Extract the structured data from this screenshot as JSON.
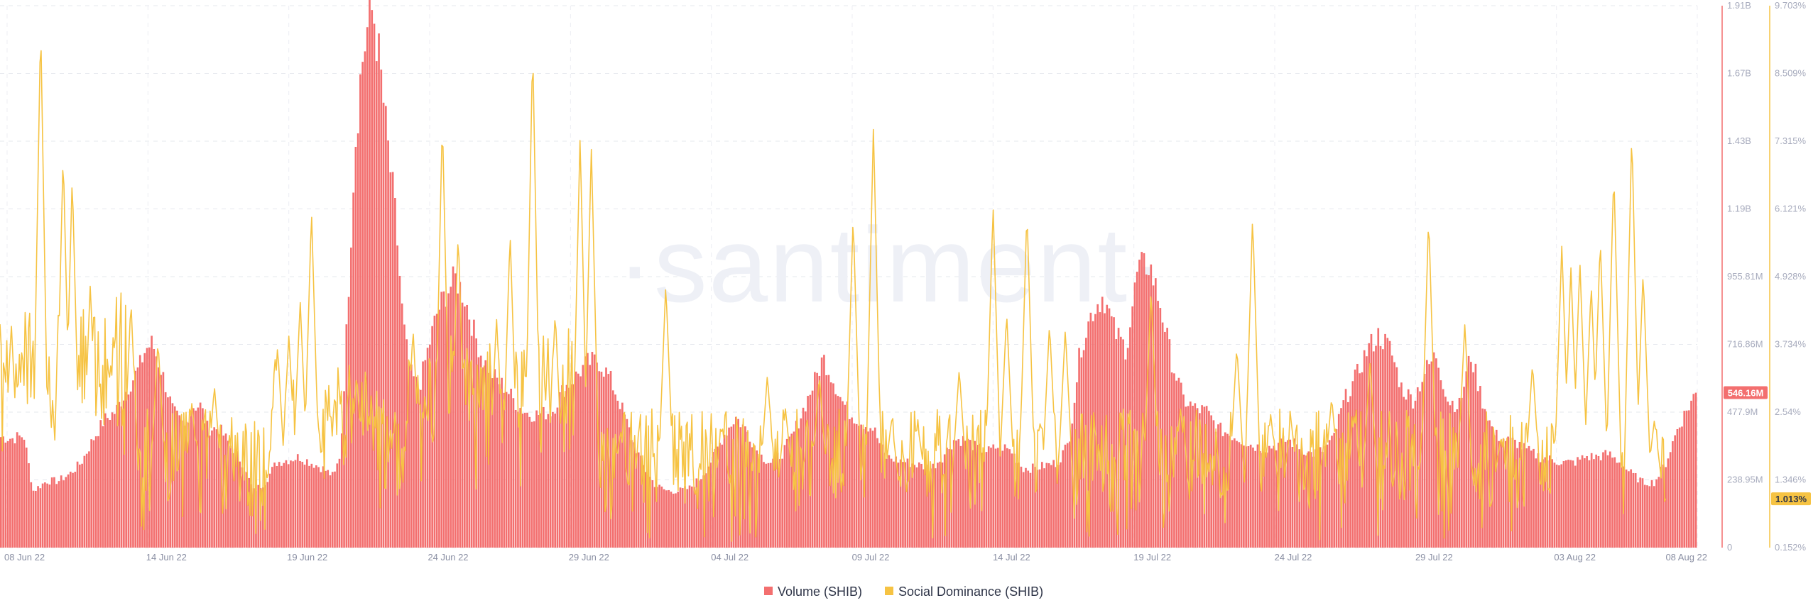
{
  "watermark": "·santiment·",
  "chart_data": {
    "type": "bar",
    "title": "",
    "xlabel": "",
    "ylabel": "",
    "x_axis": {
      "start": "2022-06-08",
      "end": "2022-08-08",
      "ticks": [
        "08 Jun 22",
        "14 Jun 22",
        "19 Jun 22",
        "24 Jun 22",
        "29 Jun 22",
        "04 Jul 22",
        "09 Jul 22",
        "14 Jul 22",
        "19 Jul 22",
        "24 Jul 22",
        "29 Jul 22",
        "03 Aug 22",
        "08 Aug 22"
      ]
    },
    "y_axis_left": {
      "ticks": [
        "0",
        "238.95M",
        "477.9M",
        "716.86M",
        "955.81M",
        "1.19B",
        "1.43B",
        "1.67B",
        "1.91B"
      ],
      "range": [
        0,
        1910000000
      ]
    },
    "y_axis_right": {
      "ticks": [
        "0.152%",
        "1.346%",
        "2.54%",
        "3.734%",
        "4.928%",
        "6.121%",
        "7.315%",
        "8.509%",
        "9.703%"
      ],
      "range": [
        0.152,
        9.703
      ]
    },
    "series": [
      {
        "name": "Volume (SHIB)",
        "type": "bar",
        "color": "#f36f6f",
        "last_value_label": "546.16M",
        "anchors": [
          [
            0,
            390
          ],
          [
            0.5,
            385
          ],
          [
            1.0,
            395
          ],
          [
            1.4,
            200
          ],
          [
            2.0,
            235
          ],
          [
            2.5,
            235
          ],
          [
            3.0,
            260
          ],
          [
            3.5,
            300
          ],
          [
            4.0,
            380
          ],
          [
            4.5,
            450
          ],
          [
            5.0,
            480
          ],
          [
            5.5,
            560
          ],
          [
            6.0,
            630
          ],
          [
            6.3,
            700
          ],
          [
            6.6,
            720
          ],
          [
            7.0,
            620
          ],
          [
            7.5,
            480
          ],
          [
            8.0,
            420
          ],
          [
            8.3,
            500
          ],
          [
            8.7,
            500
          ],
          [
            9.0,
            420
          ],
          [
            9.5,
            420
          ],
          [
            10.0,
            360
          ],
          [
            10.5,
            300
          ],
          [
            11.0,
            200
          ],
          [
            11.5,
            230
          ],
          [
            12.0,
            300
          ],
          [
            12.5,
            310
          ],
          [
            13.0,
            320
          ],
          [
            13.5,
            300
          ],
          [
            14.0,
            280
          ],
          [
            14.5,
            250
          ],
          [
            14.8,
            340
          ],
          [
            15.1,
            850
          ],
          [
            15.4,
            1400
          ],
          [
            15.7,
            1700
          ],
          [
            16.0,
            1850
          ],
          [
            16.2,
            1900
          ],
          [
            16.5,
            1700
          ],
          [
            16.8,
            1450
          ],
          [
            17.2,
            1150
          ],
          [
            17.5,
            800
          ],
          [
            17.8,
            620
          ],
          [
            18.2,
            560
          ],
          [
            18.6,
            700
          ],
          [
            19.0,
            830
          ],
          [
            19.4,
            900
          ],
          [
            19.8,
            950
          ],
          [
            20.2,
            880
          ],
          [
            20.6,
            760
          ],
          [
            21.0,
            660
          ],
          [
            21.5,
            600
          ],
          [
            22.0,
            560
          ],
          [
            22.5,
            500
          ],
          [
            23.0,
            470
          ],
          [
            23.5,
            470
          ],
          [
            24.0,
            480
          ],
          [
            24.5,
            560
          ],
          [
            25.0,
            600
          ],
          [
            25.5,
            650
          ],
          [
            26.0,
            660
          ],
          [
            26.5,
            600
          ],
          [
            27.0,
            500
          ],
          [
            27.5,
            380
          ],
          [
            28.0,
            280
          ],
          [
            28.5,
            220
          ],
          [
            29.0,
            200
          ],
          [
            29.5,
            200
          ],
          [
            30.0,
            210
          ],
          [
            30.5,
            250
          ],
          [
            31.0,
            320
          ],
          [
            31.5,
            400
          ],
          [
            32.0,
            460
          ],
          [
            32.5,
            410
          ],
          [
            33.0,
            330
          ],
          [
            33.5,
            300
          ],
          [
            34.0,
            330
          ],
          [
            34.5,
            400
          ],
          [
            35.0,
            500
          ],
          [
            35.5,
            600
          ],
          [
            35.8,
            670
          ],
          [
            36.2,
            600
          ],
          [
            36.6,
            520
          ],
          [
            37.0,
            470
          ],
          [
            37.5,
            440
          ],
          [
            38.0,
            420
          ],
          [
            38.5,
            320
          ],
          [
            39.0,
            310
          ],
          [
            39.5,
            300
          ],
          [
            40.0,
            290
          ],
          [
            40.5,
            280
          ],
          [
            41.0,
            320
          ],
          [
            41.5,
            380
          ],
          [
            42.0,
            380
          ],
          [
            42.5,
            350
          ],
          [
            43.0,
            340
          ],
          [
            43.5,
            360
          ],
          [
            44.0,
            340
          ],
          [
            44.5,
            280
          ],
          [
            45.0,
            280
          ],
          [
            45.5,
            290
          ],
          [
            46.0,
            300
          ],
          [
            46.5,
            370
          ],
          [
            47.0,
            700
          ],
          [
            47.5,
            830
          ],
          [
            48.0,
            890
          ],
          [
            48.5,
            760
          ],
          [
            49.0,
            700
          ],
          [
            49.5,
            980
          ],
          [
            50.0,
            1000
          ],
          [
            50.5,
            850
          ],
          [
            51.0,
            650
          ],
          [
            51.5,
            520
          ],
          [
            52.0,
            490
          ],
          [
            52.5,
            480
          ],
          [
            53.0,
            420
          ],
          [
            53.5,
            400
          ],
          [
            54.0,
            380
          ],
          [
            54.5,
            360
          ],
          [
            55.0,
            350
          ],
          [
            55.5,
            360
          ],
          [
            56.0,
            380
          ],
          [
            56.5,
            360
          ],
          [
            57.0,
            330
          ],
          [
            57.5,
            340
          ],
          [
            58.0,
            380
          ],
          [
            58.5,
            520
          ],
          [
            59.0,
            600
          ],
          [
            59.5,
            700
          ],
          [
            60.0,
            750
          ],
          [
            60.5,
            700
          ],
          [
            61.0,
            560
          ],
          [
            61.5,
            520
          ],
          [
            62.0,
            620
          ],
          [
            62.5,
            680
          ],
          [
            63.0,
            520
          ],
          [
            63.5,
            500
          ],
          [
            64.0,
            680
          ],
          [
            64.5,
            520
          ],
          [
            65.0,
            400
          ],
          [
            65.5,
            380
          ],
          [
            66.0,
            370
          ],
          [
            66.5,
            340
          ],
          [
            67.0,
            320
          ],
          [
            67.5,
            310
          ],
          [
            68.0,
            300
          ],
          [
            68.5,
            300
          ],
          [
            69.0,
            320
          ],
          [
            69.5,
            320
          ],
          [
            70.0,
            330
          ],
          [
            70.5,
            300
          ],
          [
            71.0,
            260
          ],
          [
            71.5,
            230
          ],
          [
            72.0,
            230
          ],
          [
            72.5,
            300
          ],
          [
            73.0,
            420
          ],
          [
            73.5,
            500
          ],
          [
            73.8,
            546
          ]
        ]
      },
      {
        "name": "Social Dominance (SHIB)",
        "type": "line",
        "color": "#f6c343",
        "last_value_label": "1.013%",
        "spikes": [
          [
            0.5,
            4.1
          ],
          [
            1.8,
            9.4
          ],
          [
            2.8,
            7.1
          ],
          [
            3.2,
            6.7
          ],
          [
            4.0,
            4.8
          ],
          [
            5.8,
            4.5
          ],
          [
            7.0,
            3.8
          ],
          [
            8.5,
            2.7
          ],
          [
            9.5,
            3.0
          ],
          [
            12.3,
            3.7
          ],
          [
            12.8,
            3.9
          ],
          [
            13.3,
            4.5
          ],
          [
            13.8,
            6.1
          ],
          [
            15.8,
            3.2
          ],
          [
            18.3,
            4.0
          ],
          [
            19.6,
            7.7
          ],
          [
            20.3,
            5.7
          ],
          [
            22.0,
            4.2
          ],
          [
            22.6,
            5.7
          ],
          [
            23.6,
            9.0
          ],
          [
            24.6,
            4.3
          ],
          [
            25.7,
            7.4
          ],
          [
            26.2,
            7.2
          ],
          [
            27.5,
            2.2
          ],
          [
            29.5,
            4.8
          ],
          [
            32.0,
            2.3
          ],
          [
            34.0,
            3.2
          ],
          [
            34.8,
            2.6
          ],
          [
            36.3,
            3.2
          ],
          [
            37.8,
            6.0
          ],
          [
            38.7,
            7.6
          ],
          [
            39.5,
            2.4
          ],
          [
            40.7,
            2.2
          ],
          [
            42.5,
            3.3
          ],
          [
            44.0,
            6.2
          ],
          [
            44.6,
            4.3
          ],
          [
            45.5,
            6.1
          ],
          [
            46.5,
            4.1
          ],
          [
            47.2,
            4.0
          ],
          [
            51.0,
            4.7
          ],
          [
            52.3,
            2.6
          ],
          [
            54.8,
            3.7
          ],
          [
            55.5,
            6.0
          ],
          [
            56.3,
            2.5
          ],
          [
            57.2,
            2.4
          ],
          [
            59.0,
            2.8
          ],
          [
            60.0,
            2.5
          ],
          [
            60.7,
            3.4
          ],
          [
            63.3,
            6.0
          ],
          [
            64.9,
            4.1
          ],
          [
            66.5,
            2.1
          ],
          [
            67.9,
            3.4
          ],
          [
            69.2,
            5.5
          ],
          [
            69.6,
            5.1
          ],
          [
            70.0,
            5.2
          ],
          [
            70.5,
            4.8
          ],
          [
            70.9,
            5.6
          ],
          [
            71.5,
            6.8
          ],
          [
            72.3,
            7.5
          ],
          [
            72.8,
            5.0
          ],
          [
            73.3,
            2.4
          ]
        ]
      }
    ],
    "legend": {
      "position": "bottom-center",
      "items": [
        {
          "label": "Volume (SHIB)",
          "color": "#f36f6f"
        },
        {
          "label": "Social Dominance (SHIB)",
          "color": "#f6c343"
        }
      ]
    },
    "grid": true
  }
}
